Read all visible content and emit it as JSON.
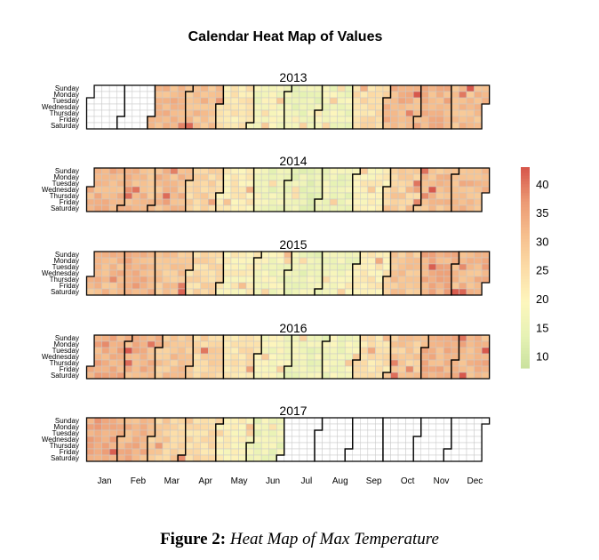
{
  "chart_data": {
    "type": "heatmap",
    "title": "Calendar Heat Map of Values",
    "years": [
      "2013",
      "2014",
      "2015",
      "2016",
      "2017"
    ],
    "weekdays": [
      "Sunday",
      "Monday",
      "Tuesday",
      "Wednesday",
      "Thursday",
      "Friday",
      "Saturday"
    ],
    "months": [
      "Jan",
      "Feb",
      "Mar",
      "Apr",
      "May",
      "Jun",
      "Jul",
      "Aug",
      "Sep",
      "Oct",
      "Nov",
      "Dec"
    ],
    "colorbar": {
      "min": 8,
      "max": 43,
      "ticks": [
        10,
        15,
        20,
        25,
        30,
        35,
        40
      ],
      "colors": [
        "#c9e19d",
        "#e6f2b4",
        "#fdf6bd",
        "#fcdca7",
        "#f6bf8e",
        "#ec9a74",
        "#d7584c"
      ]
    },
    "monthly_mean_max_temperature": {
      "2013": [
        null,
        null,
        32,
        31,
        23,
        18,
        16,
        17,
        25,
        33,
        33,
        31
      ],
      "2014": [
        33,
        32,
        32,
        27,
        22,
        16,
        15,
        16,
        21,
        28,
        31,
        32
      ],
      "2015": [
        32,
        33,
        30,
        26,
        21,
        18,
        16,
        17,
        22,
        30,
        34,
        32
      ],
      "2016": [
        34,
        33,
        30,
        27,
        24,
        18,
        16,
        17,
        24,
        29,
        33,
        33
      ],
      "2017": [
        35,
        33,
        28,
        25,
        20,
        16,
        null,
        null,
        null,
        null,
        null,
        null
      ]
    }
  },
  "caption": {
    "figure_label": "Figure 2:",
    "text": "Heat Map of Max Temperature"
  }
}
